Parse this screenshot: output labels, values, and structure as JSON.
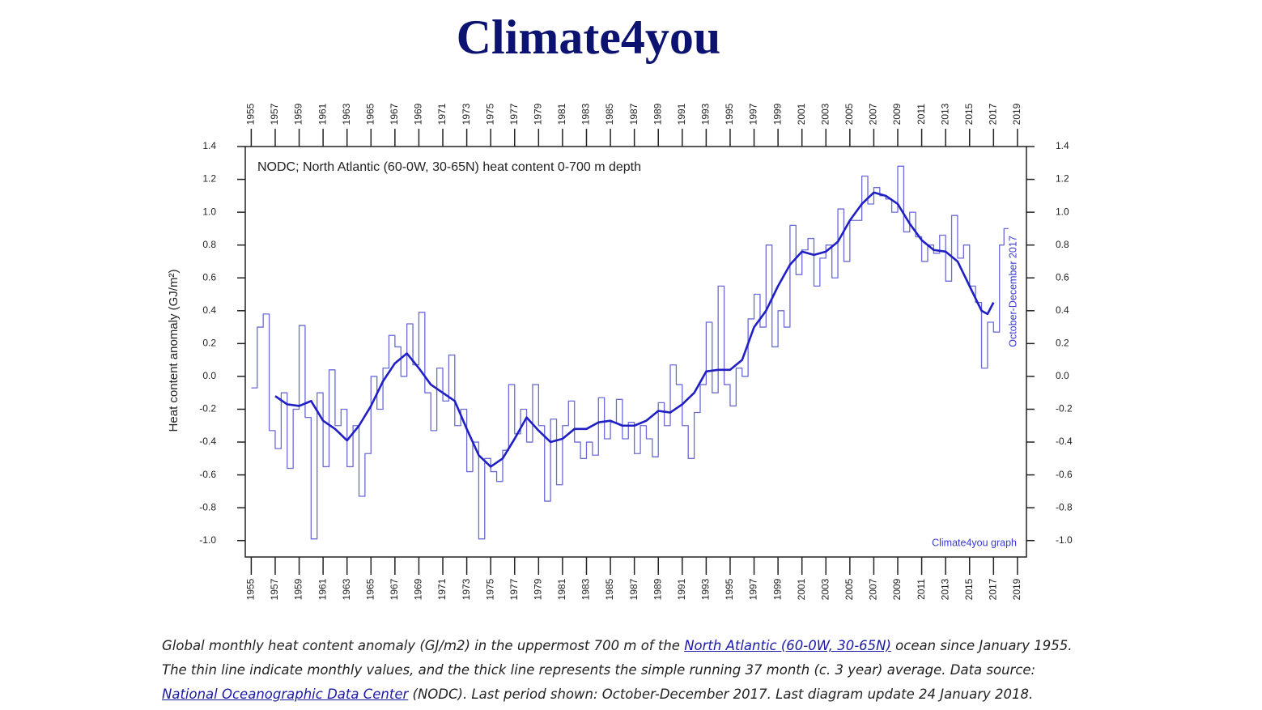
{
  "chart_data": {
    "type": "line",
    "title": "Climate4you",
    "annotation": "NODC; North Atlantic (60-0W, 30-65N) heat content 0-700 m depth",
    "credit": "Climate4you graph",
    "period_label": "October-December 2017",
    "ylabel": "Heat content anomaly (GJ/m²)",
    "xlim": [
      1954.5,
      2019.75
    ],
    "xticks": [
      1955,
      1957,
      1959,
      1961,
      1963,
      1965,
      1967,
      1969,
      1971,
      1973,
      1975,
      1977,
      1979,
      1981,
      1983,
      1985,
      1987,
      1989,
      1991,
      1993,
      1995,
      1997,
      1999,
      2001,
      2003,
      2005,
      2007,
      2009,
      2011,
      2013,
      2015,
      2017,
      2019
    ],
    "ylim": [
      -1.1,
      1.4
    ],
    "yticks": [
      1.4,
      1.2,
      {
        "value": 1,
        "label": "1.0"
      },
      0.8,
      0.6,
      0.4,
      0.2,
      {
        "value": 0,
        "label": "0.0"
      },
      -0.2,
      -0.4,
      -0.6,
      -0.8,
      {
        "value": -1,
        "label": "-1.0"
      }
    ],
    "series": [
      {
        "color": "#6b6bd6",
        "step": true,
        "x": [
          1955,
          1955.5,
          1956,
          1956.5,
          1957,
          1957.5,
          1958,
          1958.5,
          1959,
          1959.5,
          1960,
          1960.5,
          1961,
          1961.5,
          1962,
          1962.5,
          1963,
          1963.5,
          1964,
          1964.5,
          1965,
          1965.5,
          1966,
          1966.5,
          1967,
          1967.5,
          1968,
          1968.5,
          1969,
          1969.5,
          1970,
          1970.5,
          1971,
          1971.5,
          1972,
          1972.5,
          1973,
          1973.5,
          1974,
          1974.5,
          1975,
          1975.5,
          1976,
          1976.5,
          1977,
          1977.5,
          1978,
          1978.5,
          1979,
          1979.5,
          1980,
          1980.5,
          1981,
          1981.5,
          1982,
          1982.5,
          1983,
          1983.5,
          1984,
          1984.5,
          1985,
          1985.5,
          1986,
          1986.5,
          1987,
          1987.5,
          1988,
          1988.5,
          1989,
          1989.5,
          1990,
          1990.5,
          1991,
          1991.5,
          1992,
          1992.5,
          1993,
          1993.5,
          1994,
          1994.5,
          1995,
          1995.5,
          1996,
          1996.5,
          1997,
          1997.5,
          1998,
          1998.5,
          1999,
          1999.5,
          2000,
          2000.5,
          2001,
          2001.5,
          2002,
          2002.5,
          2003,
          2003.5,
          2004,
          2004.5,
          2005,
          2005.5,
          2006,
          2006.5,
          2007,
          2007.5,
          2008,
          2008.5,
          2009,
          2009.5,
          2010,
          2010.5,
          2011,
          2011.5,
          2012,
          2012.5,
          2013,
          2013.5,
          2014,
          2014.5,
          2015,
          2015.5,
          2016,
          2016.5,
          2017,
          2017.5,
          2017.875
        ],
        "values": [
          -0.07,
          0.3,
          0.38,
          -0.33,
          -0.44,
          -0.1,
          -0.56,
          -0.2,
          0.31,
          -0.25,
          -0.99,
          -0.1,
          -0.55,
          0.04,
          -0.3,
          -0.2,
          -0.55,
          -0.3,
          -0.73,
          -0.47,
          0.0,
          -0.2,
          0.05,
          0.25,
          0.18,
          0.0,
          0.32,
          0.07,
          0.39,
          -0.1,
          -0.33,
          0.05,
          -0.15,
          0.13,
          -0.3,
          -0.2,
          -0.58,
          -0.4,
          -0.99,
          -0.5,
          -0.58,
          -0.64,
          -0.45,
          -0.05,
          -0.35,
          -0.2,
          -0.4,
          -0.05,
          -0.3,
          -0.76,
          -0.26,
          -0.66,
          -0.3,
          -0.15,
          -0.4,
          -0.5,
          -0.4,
          -0.48,
          -0.13,
          -0.38,
          -0.28,
          -0.14,
          -0.38,
          -0.28,
          -0.47,
          -0.3,
          -0.38,
          -0.49,
          -0.16,
          -0.3,
          0.07,
          -0.05,
          -0.3,
          -0.5,
          -0.22,
          -0.05,
          0.33,
          -0.1,
          0.55,
          -0.05,
          -0.18,
          0.05,
          0.0,
          0.35,
          0.5,
          0.3,
          0.8,
          0.18,
          0.4,
          0.3,
          0.92,
          0.62,
          0.77,
          0.84,
          0.55,
          0.72,
          0.8,
          0.6,
          1.02,
          0.7,
          0.95,
          0.95,
          1.22,
          1.05,
          1.15,
          1.1,
          1.08,
          1.0,
          1.28,
          0.88,
          1.0,
          0.85,
          0.7,
          0.8,
          0.75,
          0.86,
          0.58,
          0.98,
          0.72,
          0.8,
          0.55,
          0.45,
          0.05,
          0.33,
          0.27,
          0.8,
          0.9
        ]
      },
      {
        "color": "#1f1fc4",
        "step": false,
        "x": [
          1957,
          1958,
          1959,
          1960,
          1961,
          1962,
          1963,
          1964,
          1965,
          1966,
          1967,
          1968,
          1969,
          1970,
          1971,
          1972,
          1973,
          1974,
          1975,
          1976,
          1977,
          1978,
          1979,
          1980,
          1981,
          1982,
          1983,
          1984,
          1985,
          1986,
          1987,
          1988,
          1989,
          1990,
          1991,
          1992,
          1993,
          1994,
          1995,
          1996,
          1997,
          1998,
          1999,
          2000,
          2001,
          2002,
          2003,
          2004,
          2005,
          2006,
          2007,
          2008,
          2009,
          2010,
          2011,
          2012,
          2013,
          2014,
          2015,
          2016,
          2016.5,
          2017
        ],
        "values": [
          -0.12,
          -0.17,
          -0.18,
          -0.15,
          -0.27,
          -0.32,
          -0.39,
          -0.3,
          -0.18,
          -0.03,
          0.08,
          0.14,
          0.05,
          -0.05,
          -0.1,
          -0.15,
          -0.32,
          -0.48,
          -0.55,
          -0.5,
          -0.38,
          -0.25,
          -0.33,
          -0.4,
          -0.38,
          -0.32,
          -0.32,
          -0.28,
          -0.27,
          -0.3,
          -0.3,
          -0.27,
          -0.21,
          -0.22,
          -0.17,
          -0.1,
          0.03,
          0.04,
          0.04,
          0.1,
          0.3,
          0.4,
          0.55,
          0.68,
          0.76,
          0.74,
          0.76,
          0.82,
          0.95,
          1.05,
          1.12,
          1.1,
          1.05,
          0.93,
          0.83,
          0.77,
          0.76,
          0.7,
          0.55,
          0.4,
          0.38,
          0.45
        ]
      }
    ]
  },
  "caption": {
    "line1_pre": "Global monthly heat content anomaly (GJ/m2) in the uppermost 700 m of the ",
    "link1": "North Atlantic (60-0W, 30-65N)",
    "line1_post": " ocean since January 1955.",
    "line2": "The thin line indicate monthly values, and the thick line represents the simple running 37 month (c. 3 year) average. Data source:",
    "link2": "National Oceanographic Data Center",
    "line3_post": " (NODC). Last period shown: October-December 2017. Last diagram update 24 January 2018."
  }
}
